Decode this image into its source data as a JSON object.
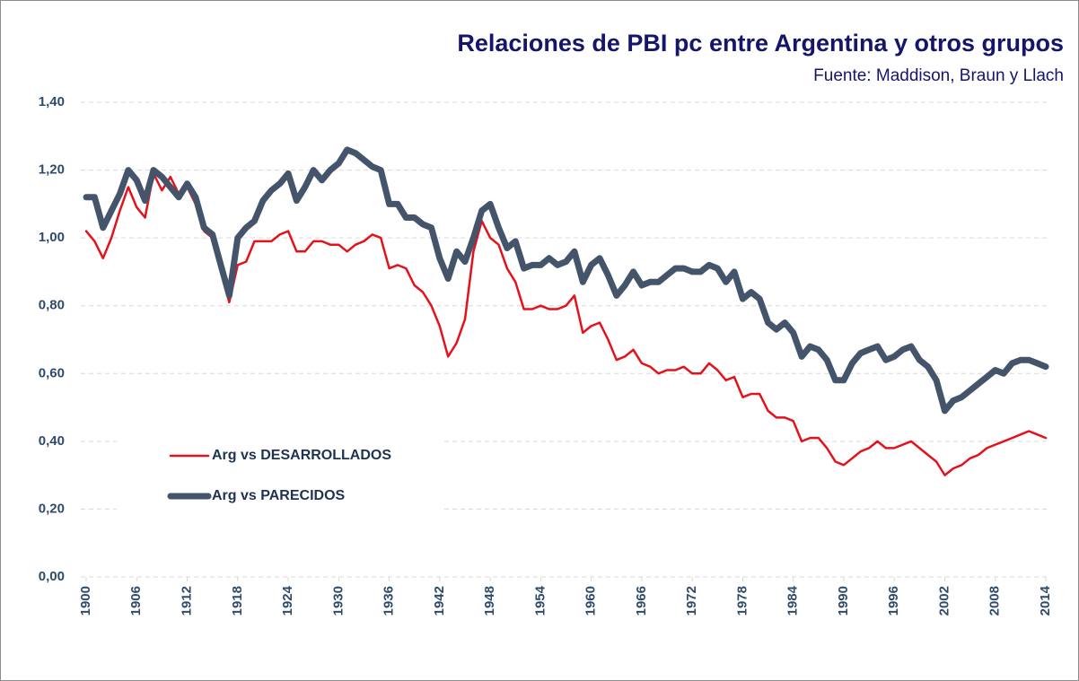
{
  "chart_data": {
    "type": "line",
    "title": "Relaciones de PBI pc entre Argentina y otros grupos",
    "subtitle": "Fuente: Maddison, Braun y Llach",
    "x": [
      1900,
      1901,
      1902,
      1903,
      1904,
      1905,
      1906,
      1907,
      1908,
      1909,
      1910,
      1911,
      1912,
      1913,
      1914,
      1915,
      1916,
      1917,
      1918,
      1919,
      1920,
      1921,
      1922,
      1923,
      1924,
      1925,
      1926,
      1927,
      1928,
      1929,
      1930,
      1931,
      1932,
      1933,
      1934,
      1935,
      1936,
      1937,
      1938,
      1939,
      1940,
      1941,
      1942,
      1943,
      1944,
      1945,
      1946,
      1947,
      1948,
      1949,
      1950,
      1951,
      1952,
      1953,
      1954,
      1955,
      1956,
      1957,
      1958,
      1959,
      1960,
      1961,
      1962,
      1963,
      1964,
      1965,
      1966,
      1967,
      1968,
      1969,
      1970,
      1971,
      1972,
      1973,
      1974,
      1975,
      1976,
      1977,
      1978,
      1979,
      1980,
      1981,
      1982,
      1983,
      1984,
      1985,
      1986,
      1987,
      1988,
      1989,
      1990,
      1991,
      1992,
      1993,
      1994,
      1995,
      1996,
      1997,
      1998,
      1999,
      2000,
      2001,
      2002,
      2003,
      2004,
      2005,
      2006,
      2007,
      2008,
      2009,
      2010,
      2011,
      2012,
      2013,
      2014
    ],
    "series": [
      {
        "name": "Arg vs DESARROLLADOS",
        "color": "#e3121b",
        "width": 2.5,
        "values": [
          1.02,
          0.99,
          0.94,
          1.0,
          1.08,
          1.15,
          1.09,
          1.06,
          1.19,
          1.14,
          1.18,
          1.13,
          1.15,
          1.1,
          1.02,
          1.0,
          0.9,
          0.81,
          0.92,
          0.93,
          0.99,
          0.99,
          0.99,
          1.01,
          1.02,
          0.96,
          0.96,
          0.99,
          0.99,
          0.98,
          0.98,
          0.96,
          0.98,
          0.99,
          1.01,
          1.0,
          0.91,
          0.92,
          0.91,
          0.86,
          0.84,
          0.8,
          0.74,
          0.65,
          0.69,
          0.76,
          0.96,
          1.05,
          1.0,
          0.98,
          0.91,
          0.87,
          0.79,
          0.79,
          0.8,
          0.79,
          0.79,
          0.8,
          0.83,
          0.72,
          0.74,
          0.75,
          0.7,
          0.64,
          0.65,
          0.67,
          0.63,
          0.62,
          0.6,
          0.61,
          0.61,
          0.62,
          0.6,
          0.6,
          0.63,
          0.61,
          0.58,
          0.59,
          0.53,
          0.54,
          0.54,
          0.49,
          0.47,
          0.47,
          0.46,
          0.4,
          0.41,
          0.41,
          0.38,
          0.34,
          0.33,
          0.35,
          0.37,
          0.38,
          0.4,
          0.38,
          0.38,
          0.39,
          0.4,
          0.38,
          0.36,
          0.34,
          0.3,
          0.32,
          0.33,
          0.35,
          0.36,
          0.38,
          0.39,
          0.4,
          0.41,
          0.42,
          0.43,
          0.42,
          0.41
        ]
      },
      {
        "name": "Arg vs PARECIDOS",
        "color": "#44546a",
        "width": 7,
        "values": [
          1.12,
          1.12,
          1.03,
          1.08,
          1.13,
          1.2,
          1.17,
          1.11,
          1.2,
          1.18,
          1.15,
          1.12,
          1.16,
          1.12,
          1.03,
          1.01,
          0.92,
          0.83,
          1.0,
          1.03,
          1.05,
          1.11,
          1.14,
          1.16,
          1.19,
          1.11,
          1.15,
          1.2,
          1.17,
          1.2,
          1.22,
          1.26,
          1.25,
          1.23,
          1.21,
          1.2,
          1.1,
          1.1,
          1.06,
          1.06,
          1.04,
          1.03,
          0.94,
          0.88,
          0.96,
          0.93,
          1.0,
          1.08,
          1.1,
          1.03,
          0.97,
          0.99,
          0.91,
          0.92,
          0.92,
          0.94,
          0.92,
          0.93,
          0.96,
          0.87,
          0.92,
          0.94,
          0.89,
          0.83,
          0.86,
          0.9,
          0.86,
          0.87,
          0.87,
          0.89,
          0.91,
          0.91,
          0.9,
          0.9,
          0.92,
          0.91,
          0.87,
          0.9,
          0.82,
          0.84,
          0.82,
          0.75,
          0.73,
          0.75,
          0.72,
          0.65,
          0.68,
          0.67,
          0.64,
          0.58,
          0.58,
          0.63,
          0.66,
          0.67,
          0.68,
          0.64,
          0.65,
          0.67,
          0.68,
          0.64,
          0.62,
          0.58,
          0.49,
          0.52,
          0.53,
          0.55,
          0.57,
          0.59,
          0.61,
          0.6,
          0.63,
          0.64,
          0.64,
          0.63,
          0.62
        ]
      }
    ],
    "xlim": [
      1900,
      2014
    ],
    "xticks": [
      1900,
      1906,
      1912,
      1918,
      1924,
      1930,
      1936,
      1942,
      1948,
      1954,
      1960,
      1966,
      1972,
      1978,
      1984,
      1990,
      1996,
      2002,
      2008,
      2014
    ],
    "ylim": [
      0,
      1.4
    ],
    "yticks": [
      {
        "value": 0,
        "label": "0,00"
      },
      {
        "value": 0.2,
        "label": "0,20"
      },
      {
        "value": 0.4,
        "label": "0,40"
      },
      {
        "value": 0.6,
        "label": "0,60"
      },
      {
        "value": 0.8,
        "label": "0,80"
      },
      {
        "value": 1.0,
        "label": "1,00"
      },
      {
        "value": 1.2,
        "label": "1,20"
      },
      {
        "value": 1.4,
        "label": "1,40"
      }
    ],
    "grid": true,
    "legend": "lower left"
  }
}
